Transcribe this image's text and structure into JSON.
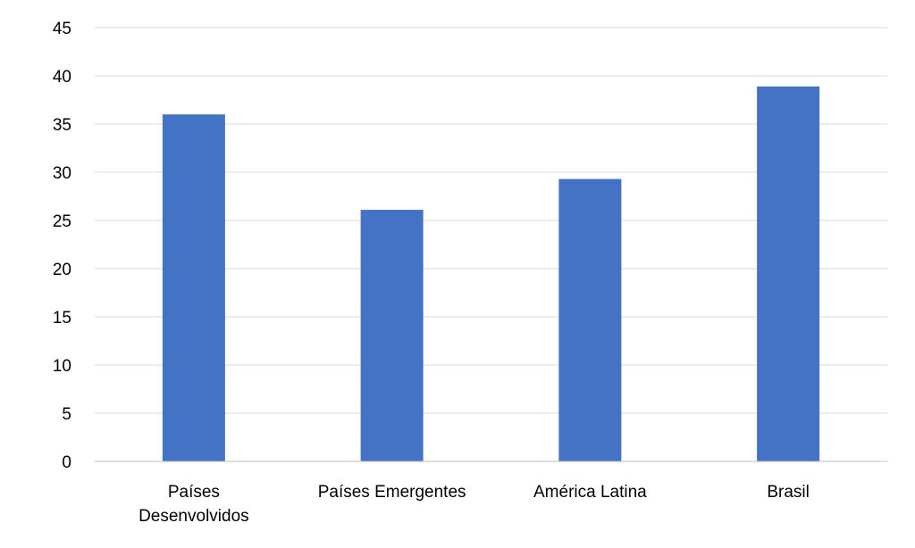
{
  "chart_data": {
    "type": "bar",
    "title": "",
    "xlabel": "",
    "ylabel": "",
    "categories": [
      [
        "Países",
        "Desenvolvidos"
      ],
      [
        "Países Emergentes"
      ],
      [
        "América Latina"
      ],
      [
        "Brasil"
      ]
    ],
    "values": [
      36,
      26.1,
      29.3,
      38.9
    ],
    "ylim": [
      0,
      45
    ],
    "yticks": [
      "0",
      "5",
      "10",
      "15",
      "20",
      "25",
      "30",
      "35",
      "40",
      "45"
    ],
    "grid": true,
    "legend": "none",
    "bar_color": "#4472c4"
  }
}
